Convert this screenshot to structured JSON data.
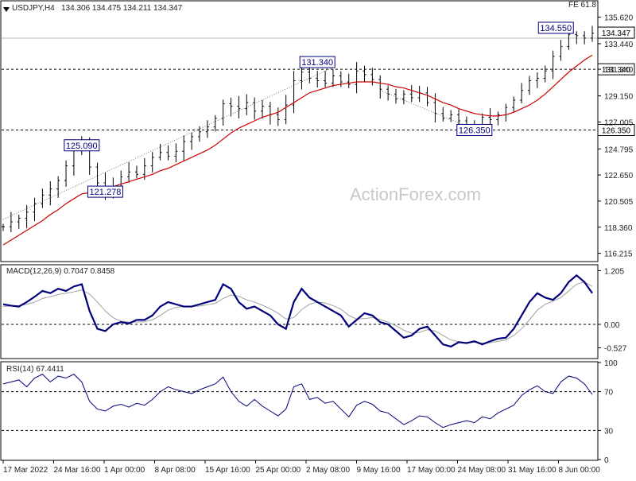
{
  "header": {
    "symbol_text": "USDJPY,H4",
    "ohlc_text": "134.306 134.475 134.211 134.347",
    "fe_text": "FE 61.8",
    "watermark": "ActionForex.com"
  },
  "colors": {
    "bars": "#000000",
    "ma": "#cc0000",
    "macd": "#00007a",
    "signal": "#a0a0a0",
    "rsi": "#00007a"
  },
  "chart_data": [
    {
      "type": "line",
      "panel": "price",
      "title": "USDJPY,H4",
      "ylim": [
        115.6,
        136.9
      ],
      "yticks": [
        116.215,
        118.36,
        120.505,
        122.65,
        124.795,
        127.005,
        129.15,
        131.34,
        133.44,
        135.62
      ],
      "xticks": [
        "17 Mar 2022",
        "24 Mar 16:00",
        "1 Apr 00:00",
        "8 Apr 08:00",
        "15 Apr 16:00",
        "25 Apr 00:00",
        "2 May 08:00",
        "9 May 16:00",
        "17 May 00:00",
        "24 May 08:00",
        "31 May 16:00",
        "8 Jun 00:00"
      ],
      "series": [
        {
          "values": [
            118.4,
            118.8,
            119.1,
            119.6,
            120.3,
            121.0,
            121.5,
            122.2,
            123.4,
            124.8,
            125.0,
            123.3,
            122.0,
            121.3,
            121.7,
            122.5,
            122.9,
            122.7,
            123.4,
            124.1,
            124.5,
            124.2,
            124.6,
            125.4,
            125.8,
            126.2,
            126.6,
            127.3,
            128.5,
            128.3,
            128.1,
            128.6,
            127.9,
            128.3,
            127.6,
            127.2,
            128.4,
            130.4,
            131.1,
            130.6,
            130.4,
            130.2,
            130.8,
            130.3,
            130.1,
            131.2,
            130.9,
            130.5,
            129.7,
            129.3,
            128.9,
            129.3,
            129.0,
            129.4,
            128.6,
            127.7,
            127.3,
            127.6,
            127.1,
            126.6,
            126.8,
            127.4,
            127.2,
            127.6,
            128.2,
            128.8,
            129.6,
            130.4,
            130.6,
            131.2,
            132.4,
            133.2,
            134.2,
            134.1,
            133.9,
            134.3
          ]
        },
        {
          "values": [
            116.9,
            117.3,
            117.7,
            118.1,
            118.5,
            118.9,
            119.4,
            119.8,
            120.3,
            120.7,
            121.1,
            121.2,
            121.4,
            121.5,
            121.7,
            121.9,
            122.1,
            122.3,
            122.5,
            122.7,
            123.0,
            123.2,
            123.5,
            123.8,
            124.1,
            124.4,
            124.7,
            125.1,
            125.6,
            126.1,
            126.5,
            126.8,
            127.1,
            127.4,
            127.6,
            127.8,
            128.2,
            128.6,
            129.0,
            129.4,
            129.6,
            129.8,
            130.0,
            130.1,
            130.2,
            130.3,
            130.3,
            130.3,
            130.2,
            130.1,
            129.9,
            129.8,
            129.6,
            129.4,
            129.2,
            128.9,
            128.6,
            128.4,
            128.1,
            127.9,
            127.7,
            127.6,
            127.5,
            127.5,
            127.6,
            127.8,
            128.1,
            128.4,
            128.8,
            129.3,
            129.9,
            130.5,
            131.1,
            131.6,
            132.1,
            132.5
          ]
        }
      ],
      "annotations": [
        {
          "text": "125.090",
          "value": 125.09
        },
        {
          "text": "121.278",
          "value": 121.278
        },
        {
          "text": "131.340",
          "value": 131.34
        },
        {
          "text": "126.350",
          "value": 126.35
        },
        {
          "text": "134.550",
          "value": 134.55
        }
      ],
      "right_tags": [
        {
          "text": "134.347",
          "value": 134.347
        },
        {
          "text": "131.340",
          "value": 131.34
        },
        {
          "text": "126.350",
          "value": 126.35
        }
      ],
      "horizontal_lines": [
        131.34,
        126.35
      ]
    },
    {
      "type": "line",
      "panel": "macd",
      "title": "MACD(12,26,9) 0.7047 0.8458",
      "ylim": [
        -0.75,
        1.32
      ],
      "yticks": [
        1.205,
        0.0,
        -0.527
      ],
      "series": [
        {
          "values": [
            0.45,
            0.42,
            0.4,
            0.5,
            0.62,
            0.75,
            0.7,
            0.8,
            0.75,
            0.85,
            0.9,
            0.3,
            -0.1,
            -0.15,
            0.0,
            0.05,
            0.02,
            0.1,
            0.1,
            0.2,
            0.4,
            0.5,
            0.45,
            0.4,
            0.4,
            0.45,
            0.5,
            0.55,
            0.9,
            0.8,
            0.5,
            0.35,
            0.4,
            0.3,
            0.2,
            0.0,
            -0.1,
            0.5,
            0.8,
            0.6,
            0.5,
            0.4,
            0.3,
            0.2,
            -0.05,
            0.1,
            0.25,
            0.2,
            0.05,
            0.0,
            -0.15,
            -0.3,
            -0.25,
            -0.1,
            -0.05,
            -0.25,
            -0.45,
            -0.5,
            -0.4,
            -0.42,
            -0.38,
            -0.45,
            -0.38,
            -0.32,
            -0.3,
            -0.1,
            0.2,
            0.5,
            0.7,
            0.6,
            0.55,
            0.7,
            0.95,
            1.1,
            0.95,
            0.7
          ]
        },
        {
          "values": [
            0.4,
            0.41,
            0.42,
            0.45,
            0.5,
            0.58,
            0.62,
            0.67,
            0.7,
            0.73,
            0.77,
            0.68,
            0.5,
            0.3,
            0.15,
            0.07,
            0.05,
            0.05,
            0.06,
            0.1,
            0.2,
            0.32,
            0.38,
            0.4,
            0.4,
            0.41,
            0.44,
            0.47,
            0.58,
            0.66,
            0.63,
            0.55,
            0.5,
            0.43,
            0.35,
            0.25,
            0.12,
            0.15,
            0.33,
            0.45,
            0.5,
            0.48,
            0.42,
            0.34,
            0.2,
            0.12,
            0.13,
            0.15,
            0.11,
            0.05,
            -0.03,
            -0.13,
            -0.2,
            -0.18,
            -0.12,
            -0.15,
            -0.25,
            -0.35,
            -0.39,
            -0.41,
            -0.4,
            -0.42,
            -0.41,
            -0.38,
            -0.35,
            -0.25,
            -0.1,
            0.1,
            0.32,
            0.45,
            0.52,
            0.6,
            0.75,
            0.9,
            0.95,
            0.85
          ]
        }
      ]
    },
    {
      "type": "line",
      "panel": "rsi",
      "title": "RSI(14) 67.4411",
      "ylim": [
        0,
        100
      ],
      "yticks": [
        100,
        70,
        30,
        0
      ],
      "series": [
        {
          "values": [
            78,
            80,
            82,
            75,
            84,
            88,
            80,
            86,
            84,
            88,
            80,
            60,
            52,
            50,
            55,
            57,
            54,
            58,
            56,
            62,
            70,
            75,
            72,
            70,
            68,
            72,
            75,
            78,
            85,
            70,
            60,
            55,
            62,
            55,
            50,
            45,
            52,
            75,
            78,
            62,
            64,
            58,
            60,
            52,
            44,
            56,
            60,
            57,
            50,
            48,
            42,
            36,
            40,
            45,
            44,
            38,
            33,
            36,
            38,
            40,
            38,
            44,
            42,
            48,
            52,
            56,
            66,
            72,
            76,
            70,
            68,
            80,
            86,
            84,
            78,
            67
          ]
        }
      ]
    }
  ]
}
